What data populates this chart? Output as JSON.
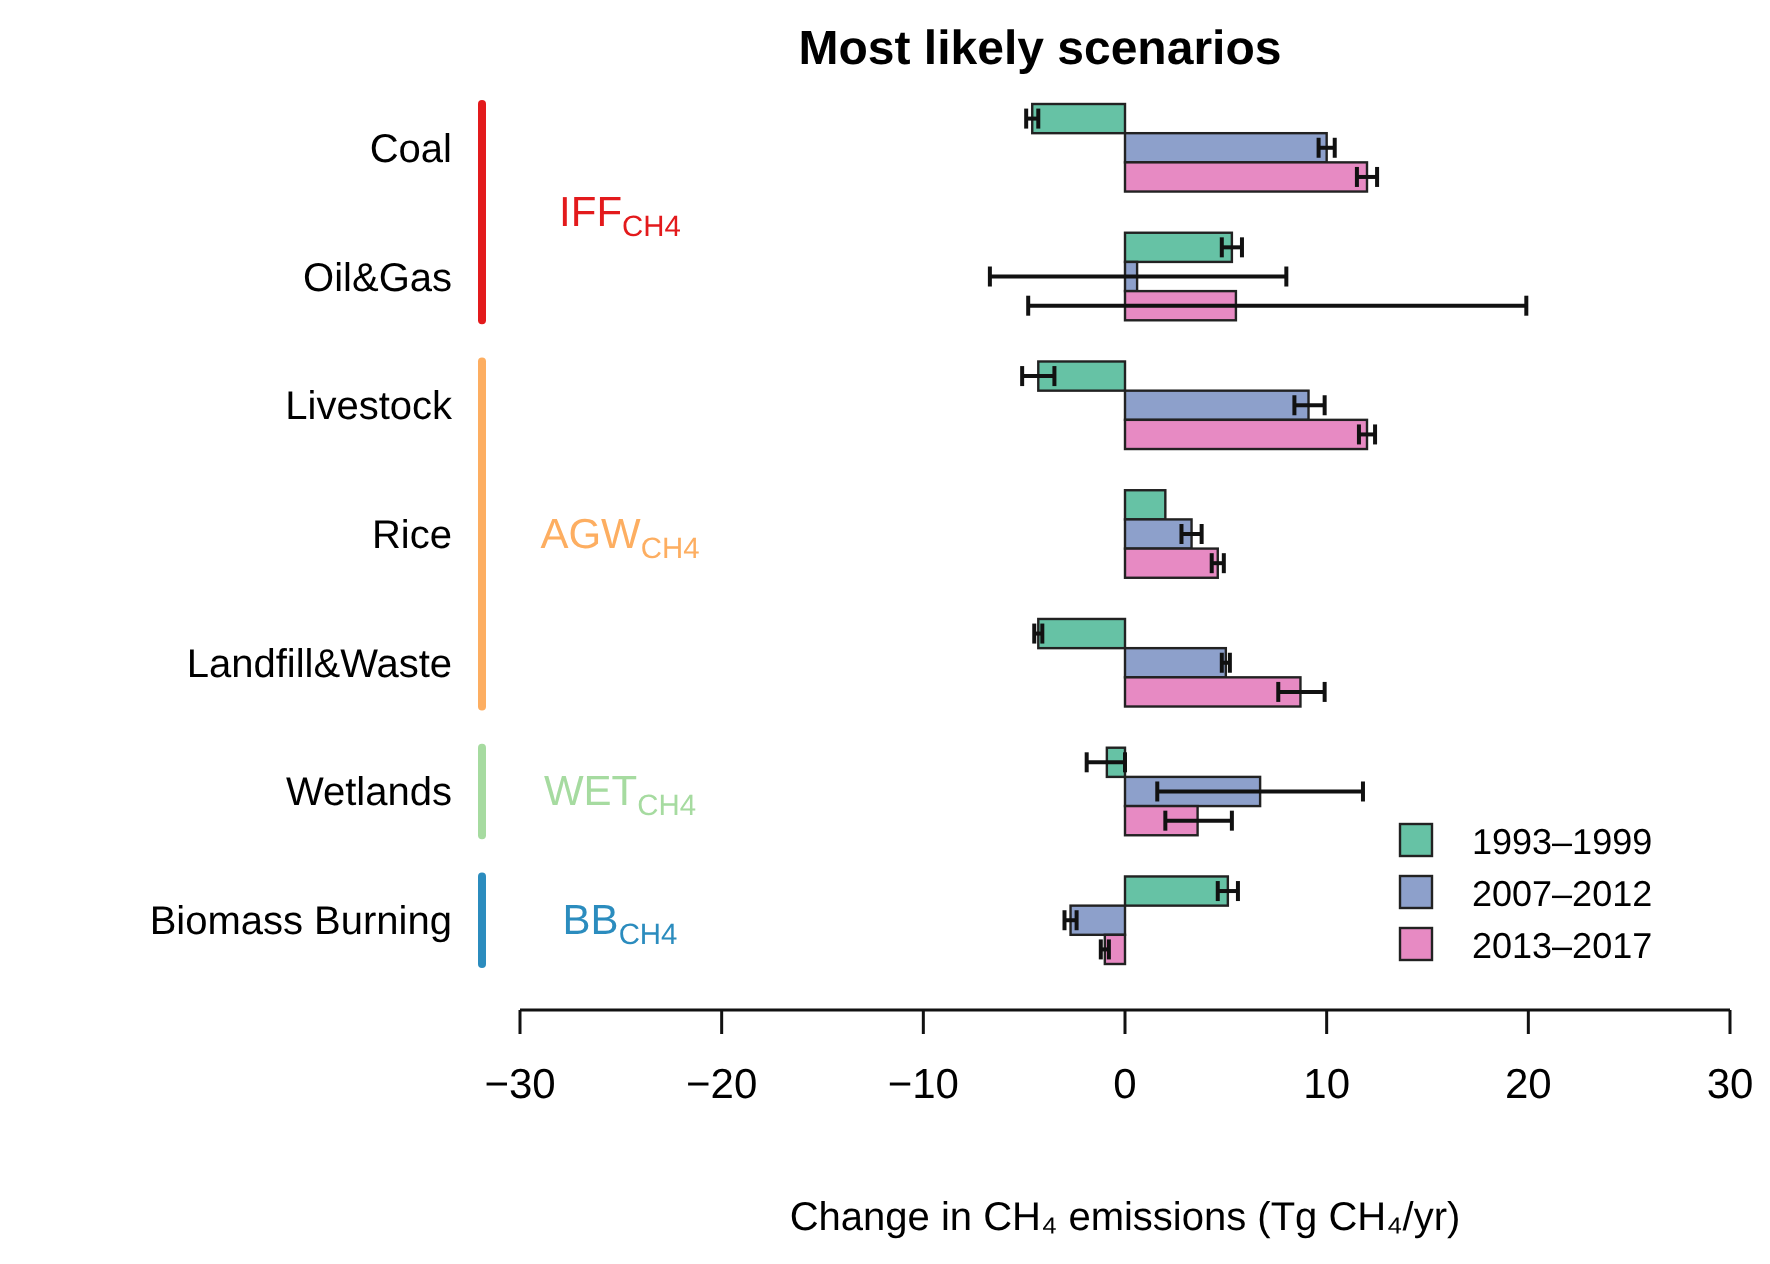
{
  "chart_data": {
    "type": "bar",
    "orientation": "horizontal",
    "title": "Most likely scenarios",
    "xlabel": "Change in CH₄ emissions (Tg CH₄/yr)",
    "categories": [
      "Coal",
      "Oil&Gas",
      "Livestock",
      "Rice",
      "Landfill&Waste",
      "Wetlands",
      "Biomass Burning"
    ],
    "series": [
      {
        "name": "1993–1999",
        "color": "#66c2a5",
        "values": [
          -4.6,
          5.3,
          -4.3,
          2.0,
          -4.3,
          -0.9,
          5.1
        ],
        "errors": [
          0.3,
          0.5,
          [
            -5.1,
            -3.5
          ],
          null,
          0.2,
          [
            -1.9,
            0
          ],
          0.5
        ]
      },
      {
        "name": "2007–2012",
        "color": "#8da0cb",
        "values": [
          10.0,
          0.6,
          9.1,
          3.3,
          5.0,
          6.7,
          -2.7
        ],
        "errors": [
          0.4,
          [
            -6.7,
            8.0
          ],
          [
            8.4,
            9.9
          ],
          [
            2.8,
            3.8
          ],
          0.2,
          [
            1.6,
            11.8
          ],
          0.3
        ]
      },
      {
        "name": "2013–2017",
        "color": "#e78ac3",
        "values": [
          12.0,
          5.5,
          12.0,
          4.6,
          8.7,
          3.6,
          -1.0
        ],
        "errors": [
          0.5,
          [
            -4.8,
            19.9
          ],
          0.4,
          0.3,
          [
            7.6,
            9.9
          ],
          [
            2.0,
            5.3
          ],
          0.2
        ]
      }
    ],
    "xlim": [
      -30,
      30
    ],
    "xticks": [
      -30,
      -20,
      -10,
      0,
      10,
      20,
      30
    ],
    "legend": "bottom right",
    "annotations": [
      "IFF$_{CH4}$",
      "AGW$_{CH4}$",
      "WET$_{CH4}$",
      "BB$_{CH4}$"
    ]
  }
}
